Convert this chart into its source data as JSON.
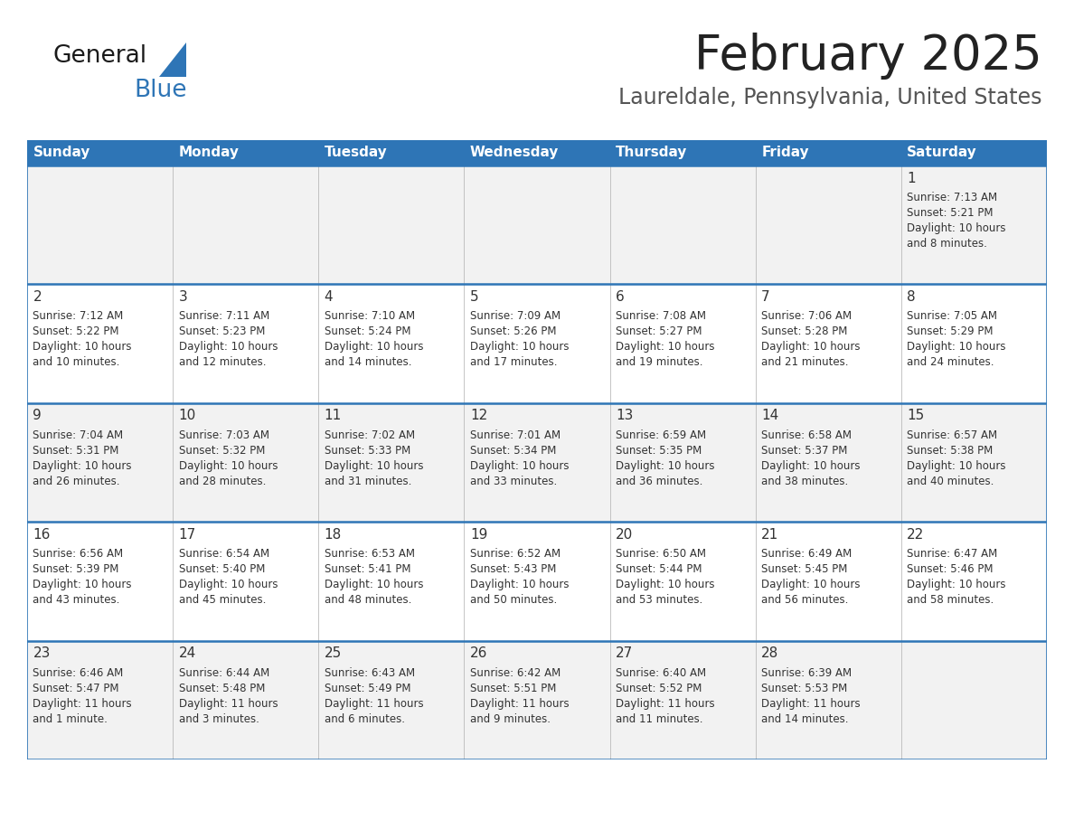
{
  "title": "February 2025",
  "subtitle": "Laureldale, Pennsylvania, United States",
  "header_bg": "#2E75B6",
  "header_text_color": "#FFFFFF",
  "row_bg_even": "#F2F2F2",
  "row_bg_odd": "#FFFFFF",
  "day_headers": [
    "Sunday",
    "Monday",
    "Tuesday",
    "Wednesday",
    "Thursday",
    "Friday",
    "Saturday"
  ],
  "calendar_data": [
    [
      null,
      null,
      null,
      null,
      null,
      null,
      {
        "day": 1,
        "sunrise": "7:13 AM",
        "sunset": "5:21 PM",
        "daylight": "10 hours\nand 8 minutes."
      }
    ],
    [
      {
        "day": 2,
        "sunrise": "7:12 AM",
        "sunset": "5:22 PM",
        "daylight": "10 hours\nand 10 minutes."
      },
      {
        "day": 3,
        "sunrise": "7:11 AM",
        "sunset": "5:23 PM",
        "daylight": "10 hours\nand 12 minutes."
      },
      {
        "day": 4,
        "sunrise": "7:10 AM",
        "sunset": "5:24 PM",
        "daylight": "10 hours\nand 14 minutes."
      },
      {
        "day": 5,
        "sunrise": "7:09 AM",
        "sunset": "5:26 PM",
        "daylight": "10 hours\nand 17 minutes."
      },
      {
        "day": 6,
        "sunrise": "7:08 AM",
        "sunset": "5:27 PM",
        "daylight": "10 hours\nand 19 minutes."
      },
      {
        "day": 7,
        "sunrise": "7:06 AM",
        "sunset": "5:28 PM",
        "daylight": "10 hours\nand 21 minutes."
      },
      {
        "day": 8,
        "sunrise": "7:05 AM",
        "sunset": "5:29 PM",
        "daylight": "10 hours\nand 24 minutes."
      }
    ],
    [
      {
        "day": 9,
        "sunrise": "7:04 AM",
        "sunset": "5:31 PM",
        "daylight": "10 hours\nand 26 minutes."
      },
      {
        "day": 10,
        "sunrise": "7:03 AM",
        "sunset": "5:32 PM",
        "daylight": "10 hours\nand 28 minutes."
      },
      {
        "day": 11,
        "sunrise": "7:02 AM",
        "sunset": "5:33 PM",
        "daylight": "10 hours\nand 31 minutes."
      },
      {
        "day": 12,
        "sunrise": "7:01 AM",
        "sunset": "5:34 PM",
        "daylight": "10 hours\nand 33 minutes."
      },
      {
        "day": 13,
        "sunrise": "6:59 AM",
        "sunset": "5:35 PM",
        "daylight": "10 hours\nand 36 minutes."
      },
      {
        "day": 14,
        "sunrise": "6:58 AM",
        "sunset": "5:37 PM",
        "daylight": "10 hours\nand 38 minutes."
      },
      {
        "day": 15,
        "sunrise": "6:57 AM",
        "sunset": "5:38 PM",
        "daylight": "10 hours\nand 40 minutes."
      }
    ],
    [
      {
        "day": 16,
        "sunrise": "6:56 AM",
        "sunset": "5:39 PM",
        "daylight": "10 hours\nand 43 minutes."
      },
      {
        "day": 17,
        "sunrise": "6:54 AM",
        "sunset": "5:40 PM",
        "daylight": "10 hours\nand 45 minutes."
      },
      {
        "day": 18,
        "sunrise": "6:53 AM",
        "sunset": "5:41 PM",
        "daylight": "10 hours\nand 48 minutes."
      },
      {
        "day": 19,
        "sunrise": "6:52 AM",
        "sunset": "5:43 PM",
        "daylight": "10 hours\nand 50 minutes."
      },
      {
        "day": 20,
        "sunrise": "6:50 AM",
        "sunset": "5:44 PM",
        "daylight": "10 hours\nand 53 minutes."
      },
      {
        "day": 21,
        "sunrise": "6:49 AM",
        "sunset": "5:45 PM",
        "daylight": "10 hours\nand 56 minutes."
      },
      {
        "day": 22,
        "sunrise": "6:47 AM",
        "sunset": "5:46 PM",
        "daylight": "10 hours\nand 58 minutes."
      }
    ],
    [
      {
        "day": 23,
        "sunrise": "6:46 AM",
        "sunset": "5:47 PM",
        "daylight": "11 hours\nand 1 minute."
      },
      {
        "day": 24,
        "sunrise": "6:44 AM",
        "sunset": "5:48 PM",
        "daylight": "11 hours\nand 3 minutes."
      },
      {
        "day": 25,
        "sunrise": "6:43 AM",
        "sunset": "5:49 PM",
        "daylight": "11 hours\nand 6 minutes."
      },
      {
        "day": 26,
        "sunrise": "6:42 AM",
        "sunset": "5:51 PM",
        "daylight": "11 hours\nand 9 minutes."
      },
      {
        "day": 27,
        "sunrise": "6:40 AM",
        "sunset": "5:52 PM",
        "daylight": "11 hours\nand 11 minutes."
      },
      {
        "day": 28,
        "sunrise": "6:39 AM",
        "sunset": "5:53 PM",
        "daylight": "11 hours\nand 14 minutes."
      },
      null
    ]
  ],
  "logo_color_general": "#1a1a1a",
  "logo_color_blue": "#2E75B6",
  "separator_color": "#2E75B6",
  "cell_text_color": "#333333",
  "day_num_color": "#333333",
  "title_fontsize": 38,
  "subtitle_fontsize": 17,
  "header_fontsize": 11,
  "daynum_fontsize": 11,
  "cell_fontsize": 8.5
}
